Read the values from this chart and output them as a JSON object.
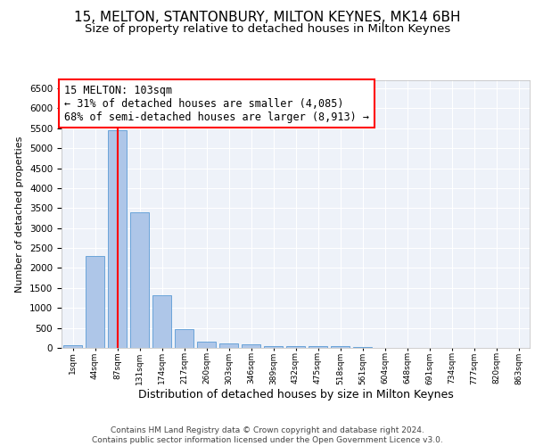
{
  "title1": "15, MELTON, STANTONBURY, MILTON KEYNES, MK14 6BH",
  "title2": "Size of property relative to detached houses in Milton Keynes",
  "xlabel": "Distribution of detached houses by size in Milton Keynes",
  "ylabel": "Number of detached properties",
  "categories": [
    "1sqm",
    "44sqm",
    "87sqm",
    "131sqm",
    "174sqm",
    "217sqm",
    "260sqm",
    "303sqm",
    "346sqm",
    "389sqm",
    "432sqm",
    "475sqm",
    "518sqm",
    "561sqm",
    "604sqm",
    "648sqm",
    "691sqm",
    "734sqm",
    "777sqm",
    "820sqm",
    "863sqm"
  ],
  "values": [
    60,
    2300,
    5450,
    3400,
    1310,
    480,
    165,
    120,
    80,
    55,
    45,
    40,
    35,
    15,
    10,
    8,
    5,
    4,
    3,
    2,
    2
  ],
  "bar_color": "#aec6e8",
  "bar_edge_color": "#5b9bd5",
  "vline_x": 2,
  "vline_color": "red",
  "annotation_text": "15 MELTON: 103sqm\n← 31% of detached houses are smaller (4,085)\n68% of semi-detached houses are larger (8,913) →",
  "annotation_box_color": "red",
  "annotation_fontsize": 8.5,
  "bg_color": "#eef2f9",
  "grid_color": "white",
  "footer": "Contains HM Land Registry data © Crown copyright and database right 2024.\nContains public sector information licensed under the Open Government Licence v3.0.",
  "ylim": [
    0,
    6700
  ],
  "title1_fontsize": 11,
  "title2_fontsize": 9.5,
  "xlabel_fontsize": 9,
  "ylabel_fontsize": 8,
  "footer_fontsize": 6.5,
  "yticks": [
    0,
    500,
    1000,
    1500,
    2000,
    2500,
    3000,
    3500,
    4000,
    4500,
    5000,
    5500,
    6000,
    6500
  ]
}
